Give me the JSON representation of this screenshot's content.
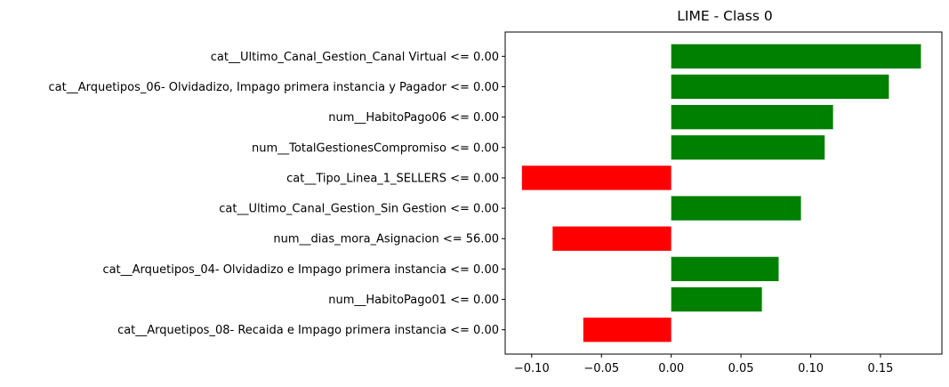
{
  "chart_data": {
    "type": "bar",
    "orientation": "horizontal",
    "title": "LIME - Class 0",
    "xlabel": "",
    "ylabel": "",
    "grid": false,
    "xlim": [
      -0.119,
      0.194
    ],
    "xticks": [
      -0.1,
      -0.05,
      0.0,
      0.05,
      0.1,
      0.15
    ],
    "xtick_labels": [
      "−0.10",
      "−0.05",
      "0.00",
      "0.05",
      "0.10",
      "0.15"
    ],
    "positive_color": "#008000",
    "negative_color": "#ff0000",
    "bars": [
      {
        "label": "cat__Ultimo_Canal_Gestion_Canal Virtual <= 0.00",
        "value": 0.179
      },
      {
        "label": "cat__Arquetipos_06- Olvidadizo, Impago primera instancia y Pagador <= 0.00",
        "value": 0.156
      },
      {
        "label": "num__HabitoPago06 <= 0.00",
        "value": 0.116
      },
      {
        "label": "num__TotalGestionesCompromiso <= 0.00",
        "value": 0.11
      },
      {
        "label": "cat__Tipo_Linea_1_SELLERS <= 0.00",
        "value": -0.107
      },
      {
        "label": "cat__Ultimo_Canal_Gestion_Sin Gestion <= 0.00",
        "value": 0.093
      },
      {
        "label": "num__dias_mora_Asignacion <= 56.00",
        "value": -0.085
      },
      {
        "label": "cat__Arquetipos_04- Olvidadizo e Impago primera instancia <= 0.00",
        "value": 0.077
      },
      {
        "label": "num__HabitoPago01 <= 0.00",
        "value": 0.065
      },
      {
        "label": "cat__Arquetipos_08- Recaida e Impago primera instancia <= 0.00",
        "value": -0.063
      }
    ]
  }
}
